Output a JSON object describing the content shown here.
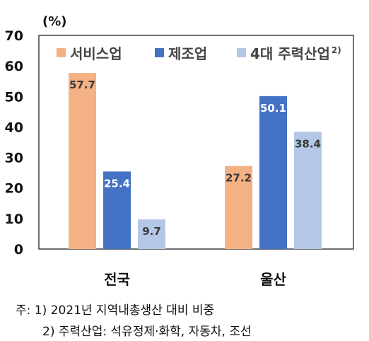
{
  "chart_data": {
    "type": "bar",
    "unit_label": "(%)",
    "categories": [
      "전국",
      "울산"
    ],
    "series": [
      {
        "name": "서비스업",
        "color": "#f4b183",
        "values": [
          57.7,
          27.2
        ]
      },
      {
        "name": "제조업",
        "color": "#4472c4",
        "values": [
          25.4,
          50.1
        ]
      },
      {
        "name": "4대 주력산업",
        "legend_superscript": "2)",
        "color": "#b4c7e7",
        "values": [
          9.7,
          38.4
        ]
      }
    ],
    "yticks": [
      0,
      10,
      20,
      30,
      40,
      50,
      60,
      70
    ],
    "ylim": [
      0,
      70
    ],
    "grid": false,
    "legend_position": "top"
  },
  "notes": {
    "line1": "주: 1) 2021년 지역내총생산 대비 비중",
    "line2": "2) 주력산업: 석유정제·화학, 자동차, 조선"
  }
}
